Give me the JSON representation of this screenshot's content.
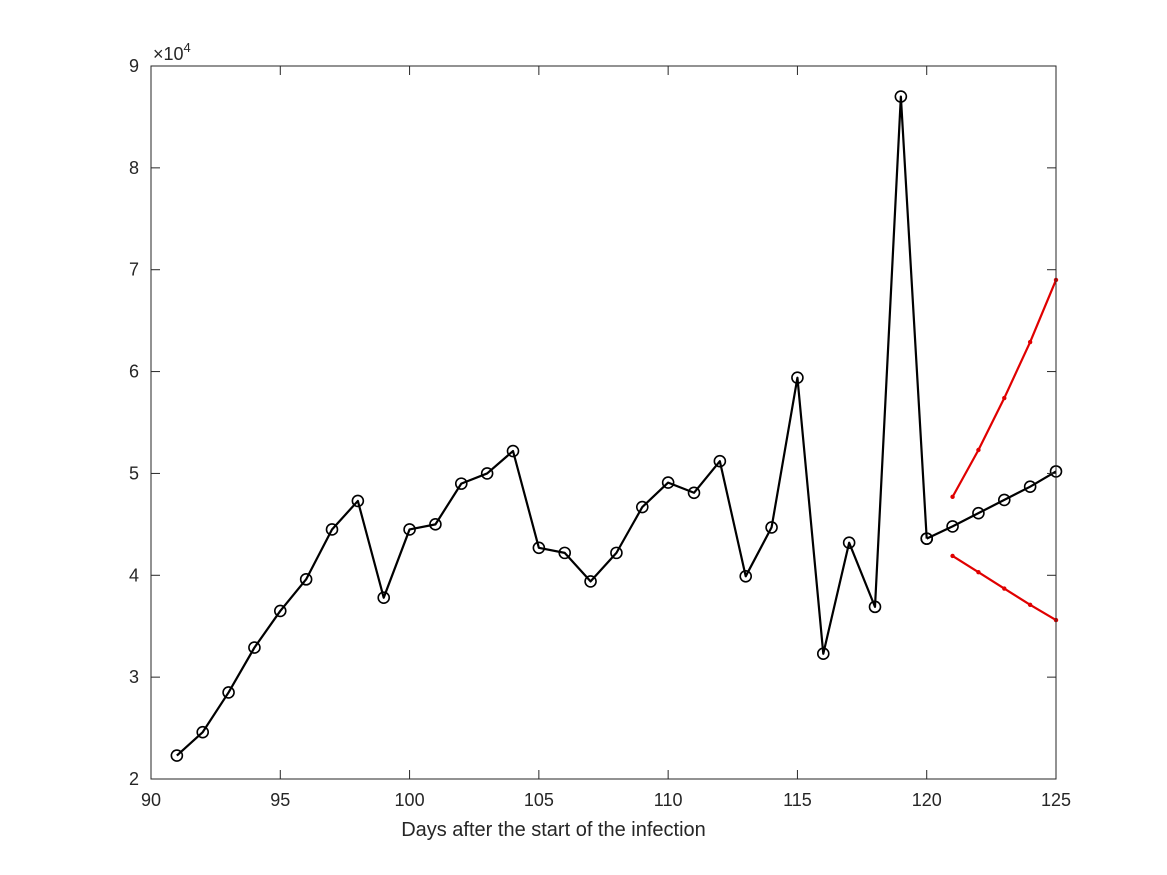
{
  "chart_data": {
    "type": "line",
    "title": "",
    "xlabel": "Days after the start of the infection",
    "ylabel": "",
    "xlim": [
      90,
      125
    ],
    "ylim": [
      20000,
      90000
    ],
    "y_exponent_label": "×10",
    "y_exponent_power": "4",
    "grid": false,
    "legend": "none",
    "x_ticks": [
      {
        "value": 90,
        "label": "90"
      },
      {
        "value": 95,
        "label": "95"
      },
      {
        "value": 100,
        "label": "100"
      },
      {
        "value": 105,
        "label": "105"
      },
      {
        "value": 110,
        "label": "110"
      },
      {
        "value": 115,
        "label": "115"
      },
      {
        "value": 120,
        "label": "120"
      },
      {
        "value": 125,
        "label": "125"
      }
    ],
    "y_ticks": [
      {
        "value": 20000,
        "label": "2"
      },
      {
        "value": 30000,
        "label": "3"
      },
      {
        "value": 40000,
        "label": "4"
      },
      {
        "value": 50000,
        "label": "5"
      },
      {
        "value": 60000,
        "label": "6"
      },
      {
        "value": 70000,
        "label": "7"
      },
      {
        "value": 80000,
        "label": "8"
      },
      {
        "value": 90000,
        "label": "9"
      }
    ],
    "series": [
      {
        "color": "#000000",
        "marker": "circle",
        "x": [
          91,
          92,
          93,
          94,
          95,
          96,
          97,
          98,
          99,
          100,
          101,
          102,
          103,
          104,
          105,
          106,
          107,
          108,
          109,
          110,
          111,
          112,
          113,
          114,
          115,
          116,
          117,
          118,
          119,
          120
        ],
        "values": [
          22300,
          24600,
          28500,
          32900,
          36500,
          39600,
          44500,
          47300,
          37800,
          44500,
          45000,
          49000,
          50000,
          52200,
          42700,
          42200,
          39400,
          42200,
          46700,
          49100,
          48100,
          51200,
          39900,
          44700,
          59400,
          32300,
          43200,
          36900,
          87000,
          43600
        ]
      },
      {
        "color": "#000000",
        "marker": "circle",
        "x": [
          120,
          121,
          122,
          123,
          124,
          125
        ],
        "values": [
          43600,
          44800,
          46100,
          47400,
          48700,
          50200
        ]
      },
      {
        "color": "#e00000",
        "marker": "dot",
        "x": [
          121,
          122,
          123,
          124,
          125
        ],
        "values": [
          47700,
          52300,
          57400,
          62900,
          69000
        ]
      },
      {
        "color": "#e00000",
        "marker": "dot",
        "x": [
          121,
          122,
          123,
          124,
          125
        ],
        "values": [
          41900,
          40300,
          38700,
          37100,
          35600
        ]
      }
    ]
  }
}
